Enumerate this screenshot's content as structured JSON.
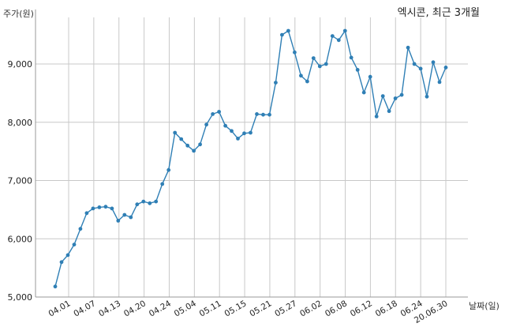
{
  "chart_data": {
    "type": "line",
    "title": "엑시콘, 최근 3개월",
    "ylabel": "주가(원)",
    "xlabel": "날짜(일)",
    "ylim": [
      5000,
      9800
    ],
    "yticks": [
      5000,
      6000,
      7000,
      8000,
      9000
    ],
    "ytick_labels": [
      "5,000",
      "6,000",
      "7,000",
      "8,000",
      "9,000"
    ],
    "xtick_labels": [
      "04.01",
      "04.07",
      "04.13",
      "04.20",
      "04.24",
      "05.04",
      "05.11",
      "05.15",
      "05.21",
      "05.27",
      "06.02",
      "06.08",
      "06.12",
      "06.18",
      "06.24",
      "20.06.30"
    ],
    "grid": true,
    "color": "#2f7fb5",
    "series": [
      {
        "values": [
          5180,
          5600,
          5720,
          5900,
          6170,
          6440,
          6520,
          6540,
          6550,
          6520,
          6310,
          6410,
          6370,
          6590,
          6640,
          6610,
          6640,
          6940,
          7180,
          7820,
          7710,
          7600,
          7510,
          7620,
          7960,
          8140,
          8180,
          7940,
          7850,
          7720,
          7810,
          7820,
          8140,
          8130,
          8130,
          8680,
          9500,
          9570,
          9200,
          8800,
          8700,
          9100,
          8960,
          9000,
          9480,
          9410,
          9570,
          9110,
          8900,
          8510,
          8780,
          8100,
          8450,
          8190,
          8410,
          8470,
          9280,
          9000,
          8920,
          8440,
          9030,
          8690,
          8940
        ]
      }
    ]
  }
}
